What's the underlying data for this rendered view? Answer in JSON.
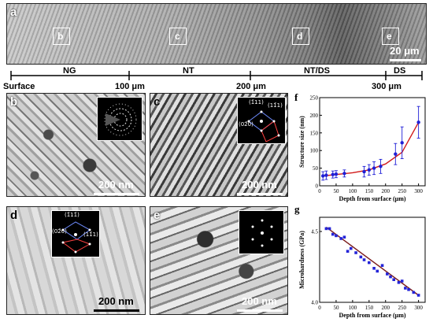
{
  "panel_a": {
    "label": "a",
    "boxes": [
      "b",
      "c",
      "d",
      "e"
    ],
    "scale": "20 μm"
  },
  "depth_axis": {
    "zones": [
      "NG",
      "NT",
      "NT/DS",
      "DS"
    ],
    "ticks": [
      "Surface",
      "100 μm",
      "200 μm",
      "300 μm"
    ]
  },
  "panel_b": {
    "label": "b",
    "scale": "200 nm"
  },
  "panel_c": {
    "label": "c",
    "scale": "200 nm",
    "spots": [
      "(1̄11)",
      "(11̄1)",
      "(02̄0)"
    ]
  },
  "panel_d": {
    "label": "d",
    "scale": "200 nm",
    "spots": [
      "(1̄11̄)",
      "(02̄0)",
      "(11̄1)"
    ]
  },
  "panel_e": {
    "label": "e",
    "scale": "200 nm"
  },
  "chart_data": [
    {
      "type": "scatter",
      "panel": "f",
      "xlabel": "Depth from surface (μm)",
      "ylabel": "Structure size (nm)",
      "xlim": [
        0,
        320
      ],
      "ylim": [
        0,
        250
      ],
      "xticks": [
        0,
        50,
        100,
        150,
        200,
        250,
        300
      ],
      "yticks": [
        0,
        50,
        100,
        150,
        200,
        250
      ],
      "points": [
        {
          "x": 10,
          "y": 28,
          "err": 12
        },
        {
          "x": 20,
          "y": 30,
          "err": 12
        },
        {
          "x": 40,
          "y": 32,
          "err": 10
        },
        {
          "x": 50,
          "y": 33,
          "err": 10
        },
        {
          "x": 75,
          "y": 35,
          "err": 10
        },
        {
          "x": 135,
          "y": 40,
          "err": 15
        },
        {
          "x": 150,
          "y": 45,
          "err": 15
        },
        {
          "x": 165,
          "y": 50,
          "err": 18
        },
        {
          "x": 185,
          "y": 55,
          "err": 20
        },
        {
          "x": 230,
          "y": 90,
          "err": 30
        },
        {
          "x": 250,
          "y": 122,
          "err": 45
        },
        {
          "x": 300,
          "y": 180,
          "err": 45
        }
      ],
      "fit": [
        [
          10,
          28
        ],
        [
          50,
          32
        ],
        [
          100,
          37
        ],
        [
          150,
          45
        ],
        [
          200,
          62
        ],
        [
          250,
          95
        ],
        [
          300,
          180
        ]
      ],
      "colors": {
        "points": "#1f1fd6",
        "fit": "#d11a1a"
      }
    },
    {
      "type": "scatter",
      "panel": "g",
      "xlabel": "Depth from surface (μm)",
      "ylabel": "Microhardness (GPa)",
      "xlim": [
        0,
        320
      ],
      "ylim": [
        4.0,
        4.6
      ],
      "xticks": [
        0,
        50,
        100,
        150,
        200,
        250,
        300
      ],
      "yticks": [
        4.0,
        4.5
      ],
      "yticklabels": [
        "4.0",
        "4.5"
      ],
      "points": [
        {
          "x": 20,
          "y": 4.52
        },
        {
          "x": 30,
          "y": 4.52
        },
        {
          "x": 40,
          "y": 4.48
        },
        {
          "x": 50,
          "y": 4.47
        },
        {
          "x": 65,
          "y": 4.45
        },
        {
          "x": 75,
          "y": 4.46
        },
        {
          "x": 85,
          "y": 4.36
        },
        {
          "x": 95,
          "y": 4.38
        },
        {
          "x": 110,
          "y": 4.35
        },
        {
          "x": 125,
          "y": 4.32
        },
        {
          "x": 135,
          "y": 4.3
        },
        {
          "x": 150,
          "y": 4.28
        },
        {
          "x": 165,
          "y": 4.24
        },
        {
          "x": 175,
          "y": 4.22
        },
        {
          "x": 190,
          "y": 4.26
        },
        {
          "x": 205,
          "y": 4.2
        },
        {
          "x": 215,
          "y": 4.18
        },
        {
          "x": 225,
          "y": 4.16
        },
        {
          "x": 240,
          "y": 4.14
        },
        {
          "x": 250,
          "y": 4.15
        },
        {
          "x": 260,
          "y": 4.1
        },
        {
          "x": 270,
          "y": 4.09
        },
        {
          "x": 285,
          "y": 4.07
        },
        {
          "x": 300,
          "y": 4.05
        }
      ],
      "fit": [
        [
          20,
          4.53
        ],
        [
          300,
          4.05
        ]
      ],
      "colors": {
        "points": "#2424d8",
        "fit": "#7a1a1a"
      }
    }
  ]
}
